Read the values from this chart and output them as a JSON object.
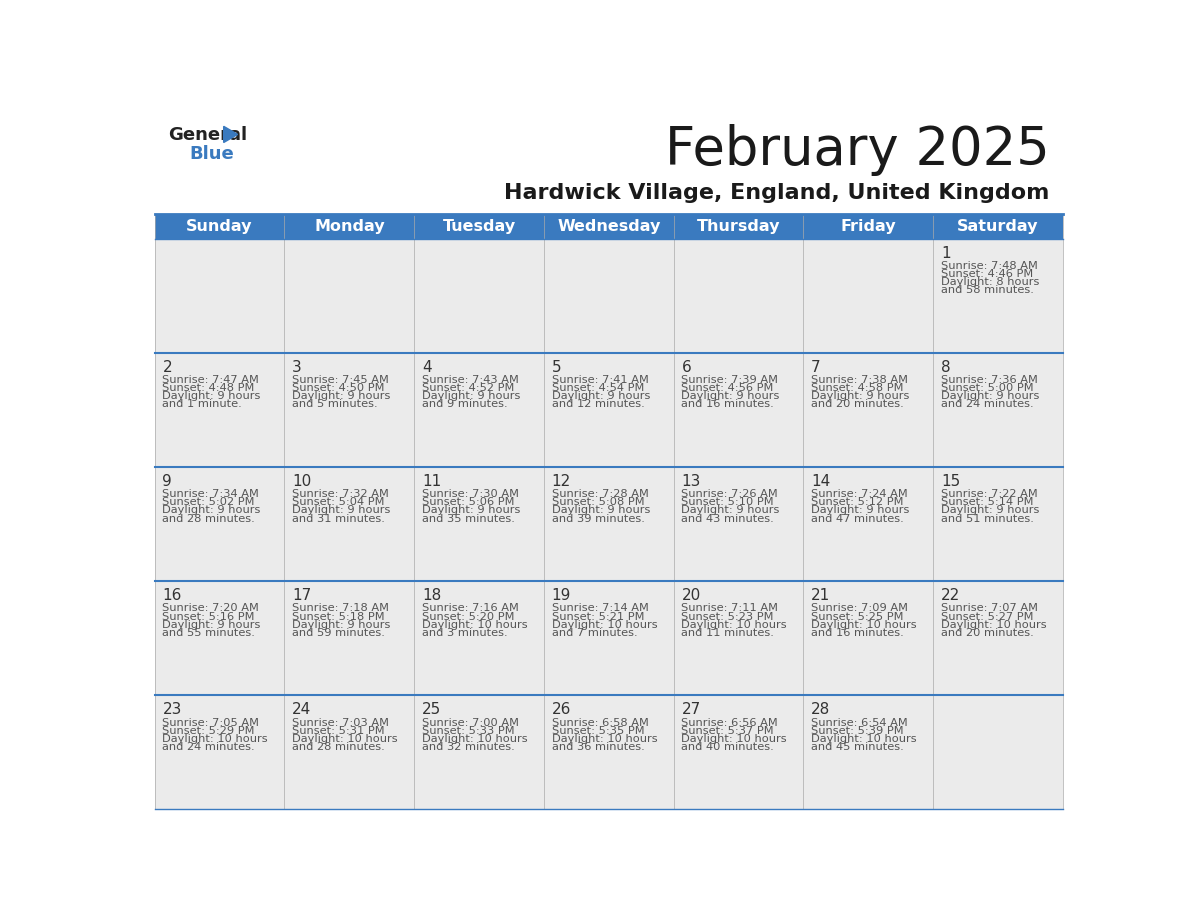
{
  "title": "February 2025",
  "subtitle": "Hardwick Village, England, United Kingdom",
  "header_bg": "#3a7abf",
  "header_text": "#ffffff",
  "cell_bg_light": "#ebebeb",
  "border_color": "#3a7abf",
  "day_headers": [
    "Sunday",
    "Monday",
    "Tuesday",
    "Wednesday",
    "Thursday",
    "Friday",
    "Saturday"
  ],
  "title_color": "#1a1a1a",
  "subtitle_color": "#1a1a1a",
  "day_num_color": "#333333",
  "cell_text_color": "#555555",
  "days": [
    {
      "day": 1,
      "col": 6,
      "row": 0,
      "sunrise": "7:48 AM",
      "sunset": "4:46 PM",
      "daylight_h": "8 hours",
      "daylight_m": "and 58 minutes."
    },
    {
      "day": 2,
      "col": 0,
      "row": 1,
      "sunrise": "7:47 AM",
      "sunset": "4:48 PM",
      "daylight_h": "9 hours",
      "daylight_m": "and 1 minute."
    },
    {
      "day": 3,
      "col": 1,
      "row": 1,
      "sunrise": "7:45 AM",
      "sunset": "4:50 PM",
      "daylight_h": "9 hours",
      "daylight_m": "and 5 minutes."
    },
    {
      "day": 4,
      "col": 2,
      "row": 1,
      "sunrise": "7:43 AM",
      "sunset": "4:52 PM",
      "daylight_h": "9 hours",
      "daylight_m": "and 9 minutes."
    },
    {
      "day": 5,
      "col": 3,
      "row": 1,
      "sunrise": "7:41 AM",
      "sunset": "4:54 PM",
      "daylight_h": "9 hours",
      "daylight_m": "and 12 minutes."
    },
    {
      "day": 6,
      "col": 4,
      "row": 1,
      "sunrise": "7:39 AM",
      "sunset": "4:56 PM",
      "daylight_h": "9 hours",
      "daylight_m": "and 16 minutes."
    },
    {
      "day": 7,
      "col": 5,
      "row": 1,
      "sunrise": "7:38 AM",
      "sunset": "4:58 PM",
      "daylight_h": "9 hours",
      "daylight_m": "and 20 minutes."
    },
    {
      "day": 8,
      "col": 6,
      "row": 1,
      "sunrise": "7:36 AM",
      "sunset": "5:00 PM",
      "daylight_h": "9 hours",
      "daylight_m": "and 24 minutes."
    },
    {
      "day": 9,
      "col": 0,
      "row": 2,
      "sunrise": "7:34 AM",
      "sunset": "5:02 PM",
      "daylight_h": "9 hours",
      "daylight_m": "and 28 minutes."
    },
    {
      "day": 10,
      "col": 1,
      "row": 2,
      "sunrise": "7:32 AM",
      "sunset": "5:04 PM",
      "daylight_h": "9 hours",
      "daylight_m": "and 31 minutes."
    },
    {
      "day": 11,
      "col": 2,
      "row": 2,
      "sunrise": "7:30 AM",
      "sunset": "5:06 PM",
      "daylight_h": "9 hours",
      "daylight_m": "and 35 minutes."
    },
    {
      "day": 12,
      "col": 3,
      "row": 2,
      "sunrise": "7:28 AM",
      "sunset": "5:08 PM",
      "daylight_h": "9 hours",
      "daylight_m": "and 39 minutes."
    },
    {
      "day": 13,
      "col": 4,
      "row": 2,
      "sunrise": "7:26 AM",
      "sunset": "5:10 PM",
      "daylight_h": "9 hours",
      "daylight_m": "and 43 minutes."
    },
    {
      "day": 14,
      "col": 5,
      "row": 2,
      "sunrise": "7:24 AM",
      "sunset": "5:12 PM",
      "daylight_h": "9 hours",
      "daylight_m": "and 47 minutes."
    },
    {
      "day": 15,
      "col": 6,
      "row": 2,
      "sunrise": "7:22 AM",
      "sunset": "5:14 PM",
      "daylight_h": "9 hours",
      "daylight_m": "and 51 minutes."
    },
    {
      "day": 16,
      "col": 0,
      "row": 3,
      "sunrise": "7:20 AM",
      "sunset": "5:16 PM",
      "daylight_h": "9 hours",
      "daylight_m": "and 55 minutes."
    },
    {
      "day": 17,
      "col": 1,
      "row": 3,
      "sunrise": "7:18 AM",
      "sunset": "5:18 PM",
      "daylight_h": "9 hours",
      "daylight_m": "and 59 minutes."
    },
    {
      "day": 18,
      "col": 2,
      "row": 3,
      "sunrise": "7:16 AM",
      "sunset": "5:20 PM",
      "daylight_h": "10 hours",
      "daylight_m": "and 3 minutes."
    },
    {
      "day": 19,
      "col": 3,
      "row": 3,
      "sunrise": "7:14 AM",
      "sunset": "5:21 PM",
      "daylight_h": "10 hours",
      "daylight_m": "and 7 minutes."
    },
    {
      "day": 20,
      "col": 4,
      "row": 3,
      "sunrise": "7:11 AM",
      "sunset": "5:23 PM",
      "daylight_h": "10 hours",
      "daylight_m": "and 11 minutes."
    },
    {
      "day": 21,
      "col": 5,
      "row": 3,
      "sunrise": "7:09 AM",
      "sunset": "5:25 PM",
      "daylight_h": "10 hours",
      "daylight_m": "and 16 minutes."
    },
    {
      "day": 22,
      "col": 6,
      "row": 3,
      "sunrise": "7:07 AM",
      "sunset": "5:27 PM",
      "daylight_h": "10 hours",
      "daylight_m": "and 20 minutes."
    },
    {
      "day": 23,
      "col": 0,
      "row": 4,
      "sunrise": "7:05 AM",
      "sunset": "5:29 PM",
      "daylight_h": "10 hours",
      "daylight_m": "and 24 minutes."
    },
    {
      "day": 24,
      "col": 1,
      "row": 4,
      "sunrise": "7:03 AM",
      "sunset": "5:31 PM",
      "daylight_h": "10 hours",
      "daylight_m": "and 28 minutes."
    },
    {
      "day": 25,
      "col": 2,
      "row": 4,
      "sunrise": "7:00 AM",
      "sunset": "5:33 PM",
      "daylight_h": "10 hours",
      "daylight_m": "and 32 minutes."
    },
    {
      "day": 26,
      "col": 3,
      "row": 4,
      "sunrise": "6:58 AM",
      "sunset": "5:35 PM",
      "daylight_h": "10 hours",
      "daylight_m": "and 36 minutes."
    },
    {
      "day": 27,
      "col": 4,
      "row": 4,
      "sunrise": "6:56 AM",
      "sunset": "5:37 PM",
      "daylight_h": "10 hours",
      "daylight_m": "and 40 minutes."
    },
    {
      "day": 28,
      "col": 5,
      "row": 4,
      "sunrise": "6:54 AM",
      "sunset": "5:39 PM",
      "daylight_h": "10 hours",
      "daylight_m": "and 45 minutes."
    }
  ]
}
